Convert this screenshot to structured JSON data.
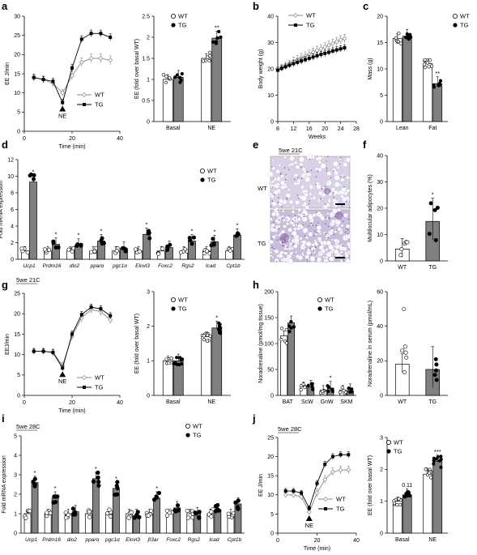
{
  "colors": {
    "wt": "#ffffff",
    "tg": "#808080",
    "tg_marker": "#000000",
    "wt_line": "#888888",
    "tissue_wt": "#d8d2e6",
    "tissue_tg": "#c9bedb",
    "nucleus": "#7a4f96"
  },
  "legend": {
    "wt": "WT",
    "tg": "TG"
  },
  "panels": {
    "a": "a",
    "b": "b",
    "c": "c",
    "d": "d",
    "e": "e",
    "f": "f",
    "g": "g",
    "h": "h",
    "i": "i",
    "j": "j"
  },
  "images": {
    "title": "5we 21C",
    "row1": "WT",
    "row2": "TG"
  },
  "chart_data": [
    {
      "id": "a_line",
      "type": "line",
      "xlabel": "Time (min)",
      "ylabel": "EE J/min",
      "xlim": [
        0,
        40
      ],
      "ylim": [
        0,
        30
      ],
      "xticks": [
        0,
        20,
        40
      ],
      "yticks": [
        0,
        5,
        10,
        15,
        20,
        25,
        30
      ],
      "annotation": "NE",
      "annotation_x": 16,
      "x": [
        4,
        8,
        12,
        16,
        20,
        24,
        28,
        32,
        36
      ],
      "series": [
        {
          "name": "WT",
          "values": [
            14,
            13.5,
            12.5,
            10,
            14.5,
            18,
            19,
            19,
            18.5
          ]
        },
        {
          "name": "TG",
          "values": [
            14,
            13.5,
            13,
            7.5,
            16.5,
            24,
            25.5,
            25.5,
            24.5
          ]
        }
      ]
    },
    {
      "id": "a_bar",
      "type": "bar",
      "ylabel": "EE (fold over basal WT)",
      "ylim": [
        0,
        2.5
      ],
      "yticks": [
        0,
        0.5,
        1,
        1.5,
        2,
        2.5
      ],
      "categories": [
        "Basal",
        "NE"
      ],
      "series": [
        {
          "name": "WT",
          "values": [
            1.0,
            1.5
          ]
        },
        {
          "name": "TG",
          "values": [
            1.05,
            1.98
          ]
        }
      ],
      "significance": {
        "TG": [
          "",
          "**"
        ]
      }
    },
    {
      "id": "b",
      "type": "line",
      "xlabel": "Weeks",
      "ylabel": "Body weight (g)",
      "xlim": [
        8,
        28
      ],
      "ylim": [
        0,
        40
      ],
      "xticks": [
        8,
        12,
        16,
        20,
        24,
        28
      ],
      "yticks": [
        0,
        10,
        20,
        30,
        40
      ],
      "x": [
        8,
        9,
        10,
        11,
        12,
        13,
        14,
        15,
        16,
        17,
        18,
        19,
        20,
        21,
        22,
        23,
        24,
        25
      ],
      "series": [
        {
          "name": "WT",
          "values": [
            19.5,
            20.5,
            21.3,
            22,
            22.8,
            23.5,
            24.2,
            24.9,
            25.6,
            26.3,
            27,
            27.6,
            28.3,
            29,
            29.6,
            30.3,
            31,
            31.5
          ]
        },
        {
          "name": "TG",
          "values": [
            19.5,
            20.2,
            20.8,
            21.4,
            22,
            22.5,
            23,
            23.5,
            24,
            24.5,
            25,
            25.5,
            25.9,
            26.3,
            26.8,
            27.2,
            27.6,
            28
          ]
        }
      ]
    },
    {
      "id": "c",
      "type": "bar",
      "ylabel": "Mass (g)",
      "ylim": [
        0,
        20
      ],
      "yticks": [
        0,
        5,
        10,
        15,
        20
      ],
      "categories": [
        "Lean",
        "Fat"
      ],
      "series": [
        {
          "name": "WT",
          "values": [
            15.8,
            11
          ]
        },
        {
          "name": "TG",
          "values": [
            16.2,
            7.2
          ]
        }
      ],
      "significance": {
        "TG": [
          "",
          "**"
        ]
      }
    },
    {
      "id": "d",
      "type": "bar",
      "ylabel": "Fold mRNA expression",
      "ylim": [
        0,
        12
      ],
      "yticks": [
        0,
        2,
        4,
        6,
        8,
        10,
        12
      ],
      "categories": [
        "Ucp1",
        "Prdm16",
        "dio2",
        "pparα",
        "pgc1α",
        "Elovl3",
        "Foxc2",
        "Rgs2",
        "Icad",
        "Cpt1b"
      ],
      "series": [
        {
          "name": "WT",
          "values": [
            1,
            1,
            1,
            1,
            1,
            1,
            1,
            1,
            1,
            1
          ]
        },
        {
          "name": "TG",
          "values": [
            9.3,
            1.8,
            1.7,
            2.2,
            1.3,
            3.0,
            1.4,
            2.2,
            2.1,
            2.9
          ]
        }
      ],
      "significance": {
        "TG": [
          "*",
          "*",
          "*",
          "*",
          "",
          "*",
          "",
          "*",
          "*",
          "*"
        ]
      }
    },
    {
      "id": "f",
      "type": "bar",
      "ylabel": "Multilocular adipocytes (%)",
      "ylim": [
        0,
        40
      ],
      "yticks": [
        0,
        10,
        20,
        30,
        40
      ],
      "categories": [
        "WT",
        "TG"
      ],
      "values": [
        4.5,
        15
      ],
      "significance": [
        "",
        "*"
      ]
    },
    {
      "id": "g_line",
      "type": "line",
      "title": "5we 21C",
      "xlabel": "Time (min)",
      "ylabel": "EEJ/min",
      "xlim": [
        0,
        40
      ],
      "ylim": [
        0,
        25
      ],
      "xticks": [
        0,
        20,
        40
      ],
      "yticks": [
        0,
        5,
        10,
        15,
        20,
        25
      ],
      "annotation": "NE",
      "annotation_x": 16,
      "x": [
        4,
        8,
        12,
        16,
        20,
        24,
        28,
        32,
        36
      ],
      "series": [
        {
          "name": "WT",
          "values": [
            10.8,
            10.8,
            10.6,
            7.3,
            14.5,
            19,
            21,
            20.5,
            18.5
          ]
        },
        {
          "name": "TG",
          "values": [
            10.8,
            10.8,
            10.5,
            6.7,
            15,
            19.8,
            21.6,
            21.2,
            19.5
          ]
        }
      ]
    },
    {
      "id": "g_bar",
      "type": "bar",
      "ylabel": "EE (fold over basal WT)",
      "ylim": [
        0,
        3
      ],
      "yticks": [
        0,
        1,
        2,
        3
      ],
      "categories": [
        "Basal",
        "NE"
      ],
      "series": [
        {
          "name": "WT",
          "values": [
            1.0,
            1.7
          ]
        },
        {
          "name": "TG",
          "values": [
            1.0,
            1.95
          ]
        }
      ],
      "significance": {
        "TG": [
          "",
          "*"
        ]
      }
    },
    {
      "id": "h_tissue",
      "type": "bar",
      "ylabel": "Noradrenaline (pmol/mg tissue)",
      "ylim": [
        0,
        200
      ],
      "yticks": [
        0,
        50,
        100,
        150,
        200
      ],
      "categories": [
        "BAT",
        "ScW",
        "GnW",
        "SKM"
      ],
      "series": [
        {
          "name": "WT",
          "values": [
            115,
            17,
            10,
            10
          ]
        },
        {
          "name": "TG",
          "values": [
            140,
            16,
            14,
            9
          ]
        }
      ],
      "significance": {
        "TG": [
          "",
          "",
          "*",
          ""
        ]
      }
    },
    {
      "id": "h_serum",
      "type": "bar",
      "ylabel": "Noradrenaline in serum (pmol/mL)",
      "ylim": [
        0,
        60
      ],
      "yticks": [
        0,
        20,
        40,
        60
      ],
      "categories": [
        "WT",
        "TG"
      ],
      "values": [
        18,
        15
      ]
    },
    {
      "id": "i",
      "type": "bar",
      "title": "5we 28C",
      "ylabel": "Fold mRNA expression",
      "ylim": [
        0,
        5
      ],
      "yticks": [
        0,
        1,
        2,
        3,
        4,
        5
      ],
      "categories": [
        "Ucp1",
        "Prdm16",
        "dio2",
        "pparα",
        "pgc1α",
        "Elovl3",
        "β3ar",
        "Foxc2",
        "Rgs2",
        "Icad",
        "Cpt1b"
      ],
      "series": [
        {
          "name": "WT",
          "values": [
            1,
            1,
            1,
            1,
            1,
            1,
            1,
            1,
            1,
            1,
            1
          ]
        },
        {
          "name": "TG",
          "values": [
            2.6,
            1.8,
            1.1,
            2.8,
            2.3,
            0.9,
            1.8,
            1.3,
            1.0,
            1.2,
            1.5
          ]
        }
      ],
      "significance": {
        "TG": [
          "*",
          "*",
          "",
          "*",
          "*",
          "",
          "*",
          "",
          "",
          "",
          ""
        ]
      }
    },
    {
      "id": "j_line",
      "type": "line",
      "title": "5we 28C",
      "xlabel": "Time (min)",
      "ylabel": "EE J/min",
      "xlim": [
        0,
        40
      ],
      "ylim": [
        0,
        25
      ],
      "xticks": [
        0,
        20,
        40
      ],
      "yticks": [
        0,
        5,
        10,
        15,
        20,
        25
      ],
      "annotation": "NE",
      "annotation_x": 16,
      "x": [
        4,
        8,
        12,
        16,
        20,
        24,
        28,
        32,
        36
      ],
      "series": [
        {
          "name": "WT",
          "values": [
            10,
            10,
            9.5,
            5.5,
            10.5,
            14,
            16,
            16.5,
            16.5
          ]
        },
        {
          "name": "TG",
          "values": [
            11,
            11,
            10.5,
            6.5,
            13,
            18,
            20,
            20.5,
            20.5
          ]
        }
      ]
    },
    {
      "id": "j_bar",
      "type": "bar",
      "ylabel": "EE (fold over basal WT)",
      "ylim": [
        0,
        3
      ],
      "yticks": [
        0,
        1,
        2,
        3
      ],
      "categories": [
        "Basal",
        "NE"
      ],
      "series": [
        {
          "name": "WT",
          "values": [
            1.0,
            1.85
          ]
        },
        {
          "name": "TG",
          "values": [
            1.2,
            2.25
          ]
        }
      ],
      "significance": {
        "TG": [
          "0.11",
          "***"
        ]
      }
    }
  ]
}
